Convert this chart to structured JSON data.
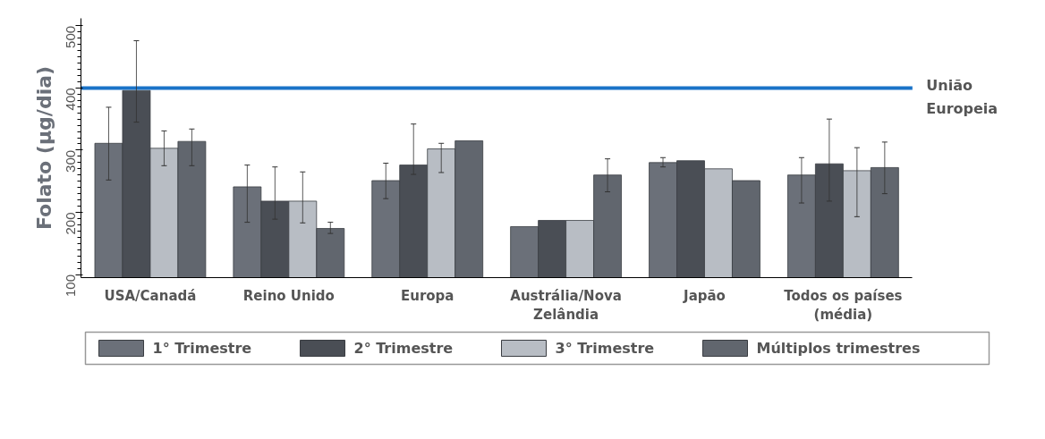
{
  "chart_data": {
    "type": "bar",
    "ylabel": "Folato (µg/dia)",
    "categories": [
      "USA/Canadá",
      "Reino Unido",
      "Europa",
      "Austrália/Nova\nZelândia",
      "Japão",
      "Todos os países\n(média)"
    ],
    "series": [
      {
        "name": "1° Trimestre",
        "color": "#6b7079",
        "values": [
          311,
          241,
          251,
          177,
          280,
          260
        ],
        "errors": [
          [
            252,
            369
          ],
          [
            184,
            276
          ],
          [
            222,
            279
          ],
          null,
          [
            273,
            288
          ],
          [
            215,
            288
          ]
        ]
      },
      {
        "name": "2° Trimestre",
        "color": "#4a4e55",
        "values": [
          396,
          218,
          276,
          187,
          283,
          278
        ],
        "errors": [
          [
            345,
            476
          ],
          [
            189,
            273
          ],
          [
            261,
            342
          ],
          null,
          null,
          [
            218,
            350
          ]
        ]
      },
      {
        "name": "3° Trimestre",
        "color": "#b8bdc4",
        "values": [
          303,
          218,
          302,
          187,
          270,
          267
        ],
        "errors": [
          [
            275,
            331
          ],
          [
            183,
            265
          ],
          [
            264,
            311
          ],
          null,
          null,
          [
            193,
            304
          ]
        ]
      },
      {
        "name": "Múltiplos trimestres",
        "color": "#61666e",
        "values": [
          314,
          174,
          315,
          260,
          251,
          272
        ],
        "errors": [
          [
            275,
            334
          ],
          [
            166,
            184
          ],
          null,
          [
            233,
            286
          ],
          null,
          [
            230,
            313
          ]
        ]
      }
    ],
    "ylim": [
      95,
      512
    ],
    "yticks": [
      100,
      200,
      300,
      400,
      500
    ],
    "grid": false,
    "legend": "bottom",
    "ref_lines": [
      {
        "axis": "y",
        "value": 400,
        "label": "União\nEuropeia",
        "color": "#1a73c8"
      }
    ]
  }
}
